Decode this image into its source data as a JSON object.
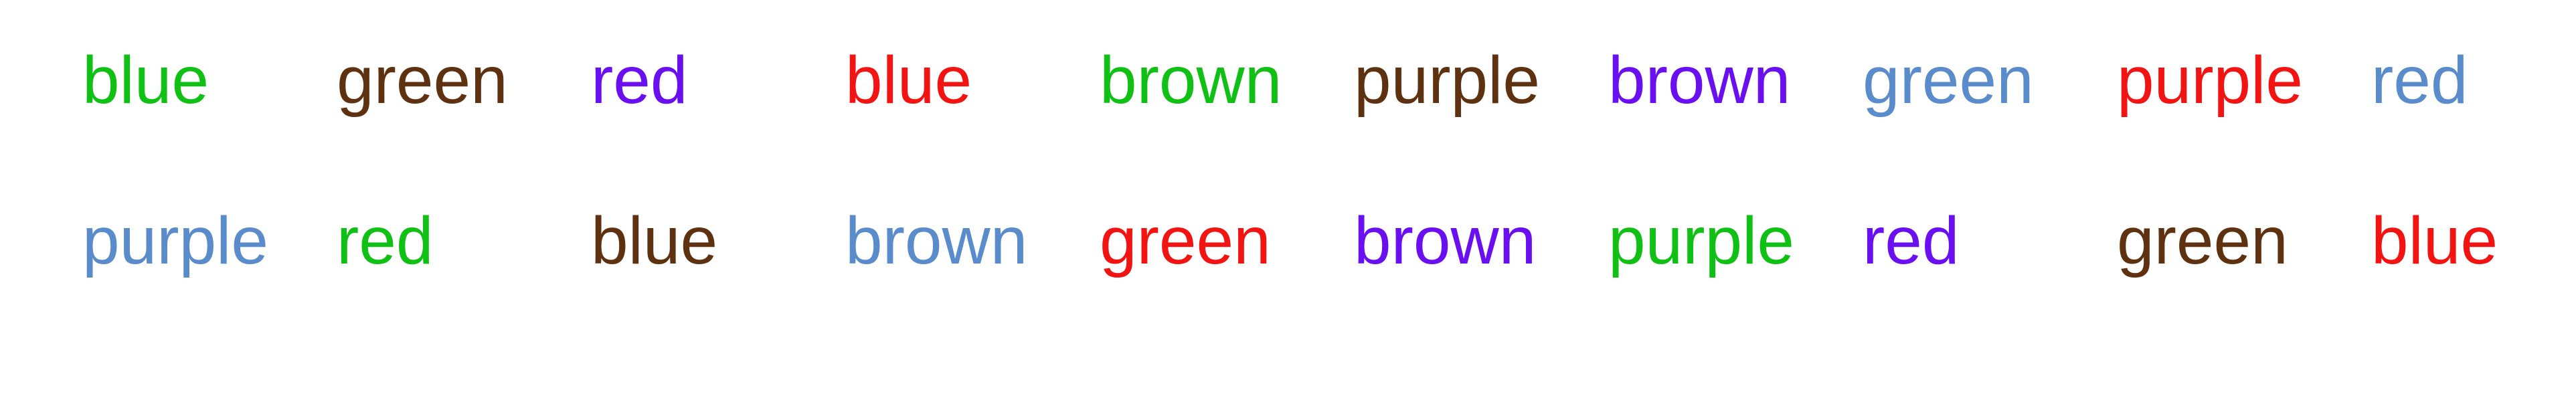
{
  "palette": {
    "green": "#11c014",
    "brown": "#5e3210",
    "purple": "#6a10f0",
    "red": "#f21412",
    "blue": "#5a8ccc"
  },
  "rows": [
    [
      {
        "text": "blue",
        "ink": "green"
      },
      {
        "text": "green",
        "ink": "brown"
      },
      {
        "text": "red",
        "ink": "purple"
      },
      {
        "text": "blue",
        "ink": "red"
      },
      {
        "text": "brown",
        "ink": "green"
      },
      {
        "text": "purple",
        "ink": "brown"
      },
      {
        "text": "brown",
        "ink": "purple"
      },
      {
        "text": "green",
        "ink": "blue"
      },
      {
        "text": "purple",
        "ink": "red"
      },
      {
        "text": "red",
        "ink": "blue"
      }
    ],
    [
      {
        "text": "purple",
        "ink": "blue"
      },
      {
        "text": "red",
        "ink": "green"
      },
      {
        "text": "blue",
        "ink": "brown"
      },
      {
        "text": "brown",
        "ink": "blue"
      },
      {
        "text": "green",
        "ink": "red"
      },
      {
        "text": "brown",
        "ink": "purple"
      },
      {
        "text": "purple",
        "ink": "green"
      },
      {
        "text": "red",
        "ink": "purple"
      },
      {
        "text": "green",
        "ink": "brown"
      },
      {
        "text": "blue",
        "ink": "red"
      }
    ]
  ]
}
